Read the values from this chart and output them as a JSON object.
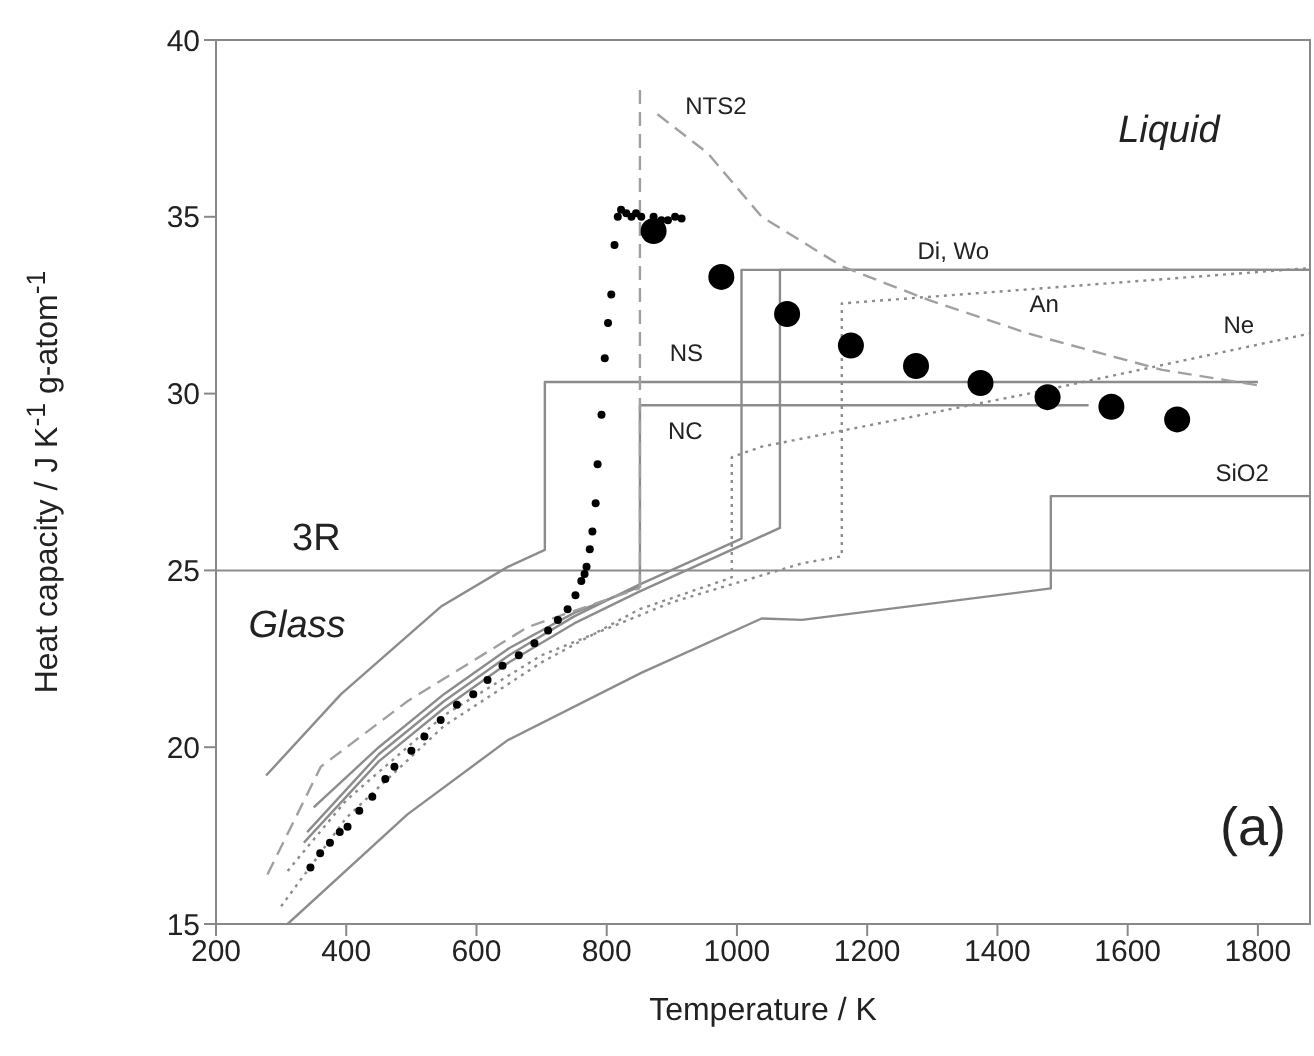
{
  "chart_data": {
    "type": "line",
    "xlabel": "Temperature / K",
    "ylabel": "Heat capacity / J K$^{-1}$ g-atom$^{-1}$",
    "xlim": [
      200,
      1880
    ],
    "xticks": [
      200,
      400,
      600,
      800,
      1000,
      1200,
      1400,
      1600,
      1800
    ],
    "ylim": [
      15,
      40
    ],
    "yticks": [
      15,
      20,
      25,
      30,
      35,
      40
    ],
    "ref_lines": [
      {
        "axis": "y",
        "value": 25,
        "label": "3R",
        "color": "#8c8c8c"
      }
    ],
    "annotations": [
      "NTS2",
      "NS",
      "NC",
      "Di, Wo",
      "An",
      "Ne",
      "SiO2",
      "Glass",
      "Liquid",
      "(a)"
    ],
    "series": [
      {
        "color": "#8c8c8c",
        "line_style": "solid",
        "x": [
          277,
          392,
          545,
          648,
          705,
          705,
          1800
        ],
        "values": [
          19.2,
          21.5,
          23.97,
          25.1,
          25.58,
          30.33,
          30.33
        ]
      },
      {
        "color": "#8c8c8c",
        "line_style": "solid",
        "x": [
          350,
          450,
          550,
          650,
          750,
          851,
          851,
          1540
        ],
        "values": [
          18.3,
          20.0,
          21.5,
          22.8,
          23.8,
          24.54,
          29.67,
          29.67
        ]
      },
      {
        "color": "#8c8c8c",
        "line_style": "solid",
        "x": [
          340,
          450,
          550,
          650,
          750,
          850,
          1007,
          1007,
          1880
        ],
        "values": [
          17.6,
          19.8,
          21.3,
          22.6,
          23.7,
          24.6,
          25.9,
          33.5,
          33.5
        ]
      },
      {
        "color": "#8c8c8c",
        "line_style": "solid",
        "x": [
          335,
          450,
          550,
          650,
          750,
          850,
          1066,
          1066,
          1880
        ],
        "values": [
          17.3,
          19.6,
          21.1,
          22.4,
          23.5,
          24.4,
          26.2,
          33.5,
          33.5
        ]
      },
      {
        "color": "#8c8c8c",
        "line_style": "dotted",
        "x": [
          310,
          400,
          550,
          700,
          900,
          1100,
          1161,
          1161,
          1880
        ],
        "values": [
          16.5,
          18.5,
          20.9,
          22.6,
          24.1,
          25.2,
          25.4,
          32.55,
          33.55
        ]
      },
      {
        "color": "#8c8c8c",
        "line_style": "dotted",
        "x": [
          300,
          400,
          550,
          700,
          850,
          992,
          992,
          1038,
          1448,
          1880
        ],
        "values": [
          15.5,
          18.0,
          20.6,
          22.4,
          23.9,
          24.8,
          28.2,
          28.5,
          30.0,
          31.7
        ]
      },
      {
        "color": "#8c8c8c",
        "line_style": "solid",
        "x": [
          310,
          494,
          648,
          853,
          1038,
          1100,
          1482,
          1482,
          1880
        ],
        "values": [
          15.0,
          18.1,
          20.2,
          22.1,
          23.64,
          23.6,
          24.49,
          27.1,
          27.1
        ]
      },
      {
        "color": "#a0a0a0",
        "line_style": "dashed",
        "x": [
          279,
          361,
          494,
          679,
          851
        ],
        "values": [
          16.4,
          19.45,
          21.3,
          23.4,
          24.5
        ]
      },
      {
        "color": "#a0a0a0",
        "line_style": "dashed",
        "x": [
          851,
          851
        ],
        "values": [
          24.5,
          38.7
        ]
      },
      {
        "color": "#a0a0a0",
        "line_style": "dashed",
        "x": [
          878,
          955,
          1038,
          1100,
          1161,
          1294,
          1447,
          1653,
          1802
        ],
        "values": [
          37.9,
          36.8,
          35.0,
          34.3,
          33.6,
          32.65,
          31.7,
          30.67,
          30.23
        ]
      },
      {
        "type": "scatter",
        "marker": "circle",
        "color": "#000000",
        "x": [
          345,
          360,
          375,
          390,
          402,
          420,
          440,
          460,
          474,
          500,
          520,
          545,
          570,
          595,
          617,
          640,
          665,
          689,
          710,
          725,
          740,
          752,
          761,
          766,
          769,
          774,
          778,
          783,
          786,
          792,
          797,
          802,
          807,
          812,
          817,
          822,
          830,
          838,
          845,
          853,
          862,
          872,
          884,
          894,
          905,
          915
        ],
        "values": [
          16.6,
          17.0,
          17.3,
          17.6,
          17.75,
          18.2,
          18.6,
          19.1,
          19.45,
          19.9,
          20.3,
          20.77,
          21.2,
          21.5,
          21.9,
          22.3,
          22.6,
          22.94,
          23.3,
          23.6,
          23.9,
          24.3,
          24.7,
          24.9,
          25.1,
          25.6,
          26.1,
          26.9,
          28.0,
          29.4,
          31.0,
          32.0,
          32.8,
          34.2,
          35.0,
          35.2,
          35.1,
          35.0,
          35.1,
          35.0,
          null,
          35.0,
          34.9,
          34.9,
          35.0,
          34.95
        ]
      },
      {
        "type": "bubble",
        "color": "#000000",
        "x": [
          872,
          976,
          1077,
          1175,
          1275,
          1374,
          1477,
          1575,
          1676
        ],
        "values": [
          34.6,
          33.3,
          32.25,
          31.36,
          30.78,
          30.3,
          29.9,
          29.63,
          29.27
        ],
        "sizes": [
          1,
          1,
          1,
          1,
          1,
          1,
          1,
          1,
          1
        ]
      }
    ]
  }
}
